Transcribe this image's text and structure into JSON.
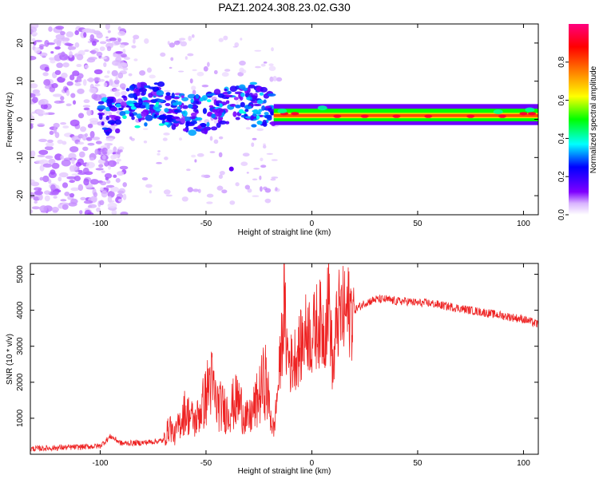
{
  "title": "PAZ1.2024.308.23.02.G30",
  "chart_data": [
    {
      "type": "heatmap",
      "xlabel": "Height of straight line (km)",
      "ylabel": "Frequency (Hz)",
      "xlim": [
        -133,
        107
      ],
      "ylim": [
        -25,
        25
      ],
      "x_ticks": [
        -100,
        -50,
        0,
        50,
        100
      ],
      "y_ticks": [
        -20,
        -10,
        0,
        10,
        20
      ],
      "colorbar": {
        "label": "Normalized spectral amplitude",
        "range": [
          0,
          1
        ],
        "ticks": [
          0.0,
          0.2,
          0.4,
          0.6,
          0.8
        ],
        "colors": [
          "#ffffff",
          "#7f00ff",
          "#0000ff",
          "#00ffff",
          "#00ff00",
          "#ffff00",
          "#ff7f00",
          "#ff0000",
          "#ff007f"
        ]
      },
      "features": [
        {
          "description_key": "noise",
          "x_range": [
            -133,
            -100
          ],
          "freq_range": [
            -25,
            25
          ],
          "amplitude": 0.05
        },
        {
          "description_key": "scattered",
          "x_range": [
            -100,
            -18
          ],
          "freq_range": [
            -5,
            10
          ],
          "amplitude": 0.25
        },
        {
          "description_key": "stable_tone",
          "x_range": [
            -18,
            107
          ],
          "frequency": 1,
          "amplitude": 0.9
        }
      ]
    },
    {
      "type": "line",
      "xlabel": "Height of straight line (km)",
      "ylabel": "SNR (10 * v/v)",
      "xlim": [
        -133,
        107
      ],
      "ylim": [
        0,
        5300
      ],
      "x_ticks": [
        -100,
        -50,
        0,
        50,
        100
      ],
      "y_ticks": [
        1000,
        2000,
        3000,
        4000,
        5000
      ],
      "color": "#ee2222",
      "series": [
        {
          "x": [
            -133,
            -120,
            -110,
            -100,
            -95,
            -90,
            -80,
            -70,
            -67,
            -65,
            -60,
            -55,
            -50,
            -48,
            -45,
            -40,
            -35,
            -30,
            -25,
            -22,
            -20,
            -18,
            -15,
            -13,
            -12,
            -10,
            -8,
            -5,
            -2,
            0,
            3,
            6,
            8,
            10,
            12,
            15,
            20,
            25,
            30,
            35,
            40,
            45,
            50,
            55,
            60,
            65,
            70,
            75,
            80,
            85,
            90,
            95,
            100,
            105,
            107
          ],
          "y": [
            150,
            180,
            200,
            230,
            500,
            300,
            320,
            380,
            800,
            500,
            1200,
            900,
            1600,
            2100,
            1400,
            1200,
            1500,
            900,
            1600,
            2100,
            1300,
            600,
            2500,
            4200,
            3000,
            2500,
            2700,
            3000,
            3500,
            3200,
            3700,
            3400,
            4500,
            2200,
            3800,
            3900,
            4000,
            4200,
            4300,
            4300,
            4250,
            4250,
            4200,
            4200,
            4150,
            4100,
            4050,
            4000,
            3950,
            3900,
            3850,
            3800,
            3750,
            3650,
            3600
          ]
        }
      ]
    }
  ]
}
